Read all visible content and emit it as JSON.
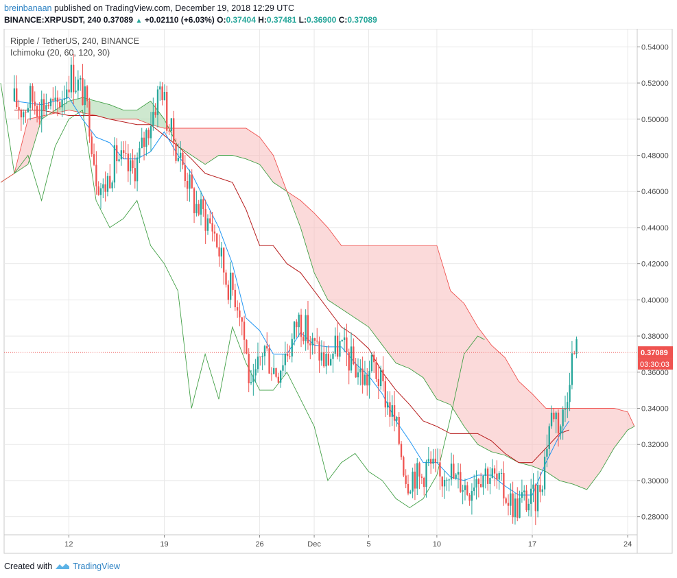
{
  "header": {
    "author": "breinbanaan",
    "published_text": "published on TradingView.com, December 19, 2018 12:29 UTC",
    "symbol_line": "BINANCE:XRPUSDT, 240",
    "last_price": "0.37089",
    "change": "+0.02110 (+6.03%)",
    "o_label": "O:",
    "o_value": "0.37404",
    "h_label": "H:",
    "h_value": "0.37481",
    "l_label": "L:",
    "l_value": "0.36900",
    "c_label": "C:",
    "c_value": "0.37089"
  },
  "legend": {
    "title": "Ripple / TetherUS, 240, BINANCE",
    "indicator": "Ichimoku (20, 60, 120, 30)"
  },
  "price_tag": {
    "value": "0.37089",
    "countdown": "03:30:03"
  },
  "footer": {
    "created_with": "Created with",
    "brand": "TradingView"
  },
  "colors": {
    "up": "#26a69a",
    "down": "#ef5350",
    "conversion": "#2196f3",
    "base": "#b71c1c",
    "lagging": "#43a047",
    "cloud_bull": "#a5d6a7",
    "cloud_bear": "#f8bbbb"
  },
  "chart_data": {
    "type": "candlestick",
    "ylim": [
      0.27,
      0.55
    ],
    "y_ticks": [
      "0.54000",
      "0.52000",
      "0.50000",
      "0.48000",
      "0.46000",
      "0.44000",
      "0.42000",
      "0.40000",
      "0.38000",
      "0.36000",
      "0.34000",
      "0.32000",
      "0.30000",
      "0.28000"
    ],
    "x_ticks": [
      {
        "day": 12,
        "label": "12"
      },
      {
        "day": 19,
        "label": "19"
      },
      {
        "day": 26,
        "label": "26"
      },
      {
        "day": 30,
        "label": "Dec"
      },
      {
        "day": 34,
        "label": "5"
      },
      {
        "day": 39,
        "label": "10"
      },
      {
        "day": 46,
        "label": "17"
      },
      {
        "day": 53,
        "label": "24"
      }
    ],
    "x_unit": "day (Nov 1 = 1, Dec 1 = 30)",
    "close_trend": [
      [
        8.0,
        0.51
      ],
      [
        8.6,
        0.505
      ],
      [
        9.2,
        0.512
      ],
      [
        9.8,
        0.508
      ],
      [
        10.4,
        0.51
      ],
      [
        11.0,
        0.505
      ],
      [
        11.6,
        0.515
      ],
      [
        12.1,
        0.525
      ],
      [
        12.6,
        0.52
      ],
      [
        13.0,
        0.515
      ],
      [
        13.5,
        0.5
      ],
      [
        14.0,
        0.47
      ],
      [
        14.5,
        0.46
      ],
      [
        15.0,
        0.47
      ],
      [
        15.5,
        0.48
      ],
      [
        16.0,
        0.475
      ],
      [
        16.6,
        0.47
      ],
      [
        17.2,
        0.48
      ],
      [
        17.8,
        0.495
      ],
      [
        18.4,
        0.51
      ],
      [
        18.8,
        0.52
      ],
      [
        19.2,
        0.5
      ],
      [
        19.6,
        0.49
      ],
      [
        20.1,
        0.48
      ],
      [
        20.6,
        0.47
      ],
      [
        21.1,
        0.455
      ],
      [
        21.6,
        0.45
      ],
      [
        22.1,
        0.445
      ],
      [
        22.6,
        0.44
      ],
      [
        23.1,
        0.425
      ],
      [
        23.6,
        0.41
      ],
      [
        24.1,
        0.405
      ],
      [
        24.6,
        0.395
      ],
      [
        25.1,
        0.365
      ],
      [
        25.4,
        0.345
      ],
      [
        25.8,
        0.36
      ],
      [
        26.3,
        0.375
      ],
      [
        26.8,
        0.365
      ],
      [
        27.3,
        0.36
      ],
      [
        27.8,
        0.37
      ],
      [
        28.3,
        0.375
      ],
      [
        28.8,
        0.39
      ],
      [
        29.3,
        0.385
      ],
      [
        29.8,
        0.375
      ],
      [
        30.3,
        0.372
      ],
      [
        30.8,
        0.365
      ],
      [
        31.3,
        0.37
      ],
      [
        31.8,
        0.375
      ],
      [
        32.3,
        0.37
      ],
      [
        32.8,
        0.365
      ],
      [
        33.3,
        0.36
      ],
      [
        33.8,
        0.355
      ],
      [
        34.3,
        0.365
      ],
      [
        34.8,
        0.355
      ],
      [
        35.3,
        0.345
      ],
      [
        35.8,
        0.335
      ],
      [
        36.3,
        0.32
      ],
      [
        36.8,
        0.3
      ],
      [
        37.3,
        0.305
      ],
      [
        37.8,
        0.3
      ],
      [
        38.3,
        0.31
      ],
      [
        38.8,
        0.305
      ],
      [
        39.3,
        0.3
      ],
      [
        39.8,
        0.31
      ],
      [
        40.3,
        0.3
      ],
      [
        40.8,
        0.3
      ],
      [
        41.3,
        0.295
      ],
      [
        41.8,
        0.303
      ],
      [
        42.3,
        0.305
      ],
      [
        42.8,
        0.305
      ],
      [
        43.3,
        0.3
      ],
      [
        43.8,
        0.295
      ],
      [
        44.3,
        0.29
      ],
      [
        44.8,
        0.285
      ],
      [
        45.3,
        0.29
      ],
      [
        45.8,
        0.288
      ],
      [
        46.3,
        0.29
      ],
      [
        46.8,
        0.305
      ],
      [
        47.2,
        0.33
      ],
      [
        47.6,
        0.34
      ],
      [
        48.0,
        0.33
      ],
      [
        48.4,
        0.34
      ],
      [
        48.8,
        0.365
      ],
      [
        49.2,
        0.373
      ],
      [
        49.4,
        0.371
      ]
    ],
    "ichimoku": {
      "conversion": [
        [
          8,
          0.51
        ],
        [
          10,
          0.508
        ],
        [
          12,
          0.512
        ],
        [
          13,
          0.5
        ],
        [
          14,
          0.49
        ],
        [
          15,
          0.487
        ],
        [
          16,
          0.478
        ],
        [
          17,
          0.478
        ],
        [
          18,
          0.482
        ],
        [
          19,
          0.493
        ],
        [
          20,
          0.48
        ],
        [
          21,
          0.47
        ],
        [
          22,
          0.455
        ],
        [
          23,
          0.44
        ],
        [
          24,
          0.42
        ],
        [
          25,
          0.39
        ],
        [
          26,
          0.383
        ],
        [
          27,
          0.37
        ],
        [
          28,
          0.37
        ],
        [
          29,
          0.382
        ],
        [
          30,
          0.375
        ],
        [
          31,
          0.374
        ],
        [
          32,
          0.374
        ],
        [
          33,
          0.365
        ],
        [
          34,
          0.358
        ],
        [
          35,
          0.348
        ],
        [
          36,
          0.333
        ],
        [
          37,
          0.322
        ],
        [
          38,
          0.31
        ],
        [
          39,
          0.31
        ],
        [
          40,
          0.302
        ],
        [
          41,
          0.3
        ],
        [
          42,
          0.303
        ],
        [
          43,
          0.303
        ],
        [
          44,
          0.297
        ],
        [
          45,
          0.292
        ],
        [
          46,
          0.292
        ],
        [
          47,
          0.31
        ],
        [
          48,
          0.325
        ],
        [
          48.7,
          0.333
        ]
      ],
      "base": [
        [
          8,
          0.505
        ],
        [
          10,
          0.505
        ],
        [
          12,
          0.502
        ],
        [
          14,
          0.502
        ],
        [
          15,
          0.5
        ],
        [
          17,
          0.497
        ],
        [
          18,
          0.497
        ],
        [
          20,
          0.485
        ],
        [
          21,
          0.478
        ],
        [
          22,
          0.47
        ],
        [
          24,
          0.465
        ],
        [
          25,
          0.45
        ],
        [
          26,
          0.43
        ],
        [
          27,
          0.43
        ],
        [
          28,
          0.42
        ],
        [
          29,
          0.415
        ],
        [
          30,
          0.405
        ],
        [
          31,
          0.395
        ],
        [
          32,
          0.385
        ],
        [
          33,
          0.38
        ],
        [
          34,
          0.373
        ],
        [
          35,
          0.36
        ],
        [
          36,
          0.35
        ],
        [
          37,
          0.342
        ],
        [
          38,
          0.333
        ],
        [
          39,
          0.33
        ],
        [
          40,
          0.326
        ],
        [
          41,
          0.326
        ],
        [
          42,
          0.326
        ],
        [
          43,
          0.322
        ],
        [
          44,
          0.315
        ],
        [
          45,
          0.31
        ],
        [
          46,
          0.31
        ],
        [
          47,
          0.318
        ],
        [
          48,
          0.326
        ],
        [
          48.7,
          0.328
        ]
      ],
      "leading_a": [
        [
          7,
          0.465
        ],
        [
          8,
          0.47
        ],
        [
          9,
          0.475
        ],
        [
          10,
          0.5
        ],
        [
          11,
          0.505
        ],
        [
          12,
          0.51
        ],
        [
          13,
          0.512
        ],
        [
          14,
          0.51
        ],
        [
          15,
          0.508
        ],
        [
          16,
          0.505
        ],
        [
          17,
          0.505
        ],
        [
          18,
          0.51
        ],
        [
          19,
          0.5
        ],
        [
          20,
          0.485
        ],
        [
          21,
          0.48
        ],
        [
          22,
          0.475
        ],
        [
          23,
          0.48
        ],
        [
          24,
          0.48
        ],
        [
          25,
          0.478
        ],
        [
          26,
          0.475
        ],
        [
          27,
          0.465
        ],
        [
          28,
          0.46
        ],
        [
          29,
          0.44
        ],
        [
          30,
          0.415
        ],
        [
          31,
          0.4
        ],
        [
          32,
          0.395
        ],
        [
          33,
          0.39
        ],
        [
          34,
          0.385
        ],
        [
          35,
          0.375
        ],
        [
          36,
          0.365
        ],
        [
          37,
          0.362
        ],
        [
          38,
          0.357
        ],
        [
          39,
          0.345
        ],
        [
          40,
          0.342
        ],
        [
          41,
          0.33
        ],
        [
          42,
          0.32
        ],
        [
          43,
          0.316
        ],
        [
          44,
          0.314
        ],
        [
          45,
          0.31
        ],
        [
          46,
          0.308
        ],
        [
          47,
          0.305
        ],
        [
          48,
          0.3
        ],
        [
          49,
          0.298
        ],
        [
          50,
          0.295
        ],
        [
          51,
          0.305
        ],
        [
          52,
          0.318
        ],
        [
          53,
          0.328
        ],
        [
          53.5,
          0.33
        ]
      ],
      "leading_b": [
        [
          7,
          0.465
        ],
        [
          8,
          0.47
        ],
        [
          9,
          0.5
        ],
        [
          12,
          0.505
        ],
        [
          14,
          0.502
        ],
        [
          15,
          0.5
        ],
        [
          17,
          0.5
        ],
        [
          18,
          0.497
        ],
        [
          19,
          0.495
        ],
        [
          20,
          0.495
        ],
        [
          22,
          0.495
        ],
        [
          24,
          0.495
        ],
        [
          25,
          0.495
        ],
        [
          26,
          0.49
        ],
        [
          27,
          0.48
        ],
        [
          28,
          0.46
        ],
        [
          29,
          0.455
        ],
        [
          30,
          0.448
        ],
        [
          31,
          0.44
        ],
        [
          32,
          0.43
        ],
        [
          34,
          0.43
        ],
        [
          36,
          0.43
        ],
        [
          38,
          0.43
        ],
        [
          39,
          0.43
        ],
        [
          40,
          0.405
        ],
        [
          41,
          0.398
        ],
        [
          42,
          0.385
        ],
        [
          43,
          0.375
        ],
        [
          44,
          0.368
        ],
        [
          45,
          0.355
        ],
        [
          46,
          0.348
        ],
        [
          47,
          0.34
        ],
        [
          48,
          0.34
        ],
        [
          50,
          0.34
        ],
        [
          52,
          0.34
        ],
        [
          53,
          0.338
        ],
        [
          53.5,
          0.33
        ]
      ],
      "lagging": [
        [
          7,
          0.52
        ],
        [
          8,
          0.47
        ],
        [
          9,
          0.48
        ],
        [
          10,
          0.455
        ],
        [
          11,
          0.485
        ],
        [
          12,
          0.5
        ],
        [
          13,
          0.505
        ],
        [
          14,
          0.455
        ],
        [
          15,
          0.44
        ],
        [
          16,
          0.445
        ],
        [
          17,
          0.455
        ],
        [
          18,
          0.43
        ],
        [
          19,
          0.42
        ],
        [
          20,
          0.405
        ],
        [
          21,
          0.34
        ],
        [
          22,
          0.37
        ],
        [
          23,
          0.345
        ],
        [
          24,
          0.385
        ],
        [
          25,
          0.365
        ],
        [
          26,
          0.35
        ],
        [
          27,
          0.35
        ],
        [
          28,
          0.36
        ],
        [
          29,
          0.345
        ],
        [
          30,
          0.33
        ],
        [
          31,
          0.3
        ],
        [
          32,
          0.31
        ],
        [
          33,
          0.315
        ],
        [
          34,
          0.305
        ],
        [
          35,
          0.3
        ],
        [
          36,
          0.29
        ],
        [
          37,
          0.285
        ],
        [
          38,
          0.29
        ],
        [
          39,
          0.303
        ],
        [
          40,
          0.335
        ],
        [
          41,
          0.37
        ],
        [
          42,
          0.38
        ],
        [
          42.5,
          0.378
        ]
      ]
    }
  }
}
